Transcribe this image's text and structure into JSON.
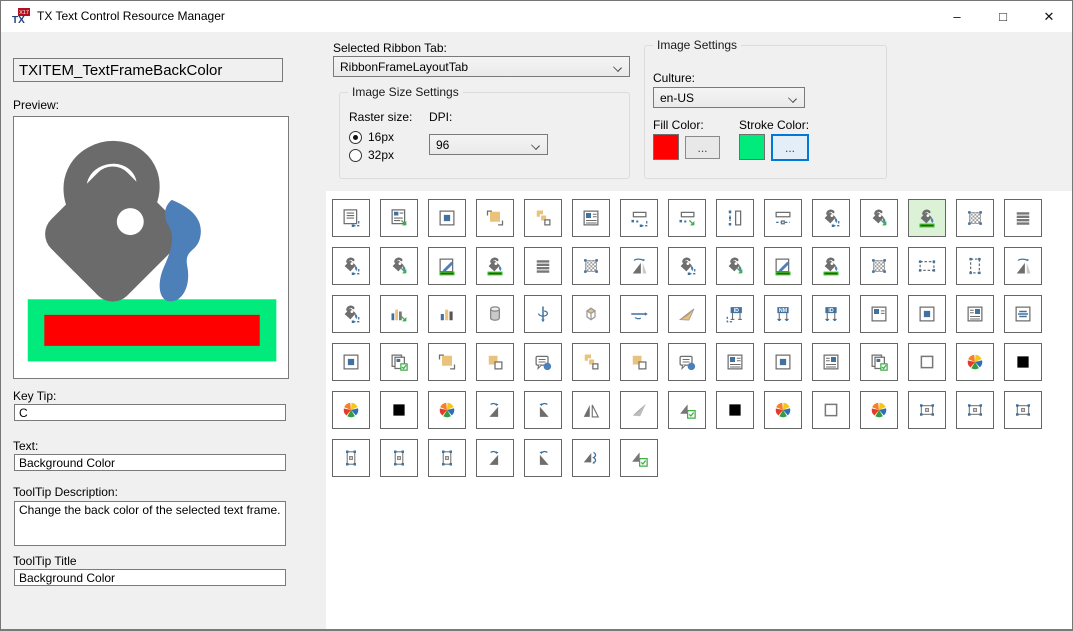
{
  "window": {
    "title": "TX Text Control Resource Manager",
    "controls": {
      "minimize": "–",
      "maximize": "□",
      "close": "✕"
    }
  },
  "left_panel": {
    "item_name": "TXITEM_TextFrameBackColor",
    "preview_label": "Preview:",
    "fields": [
      {
        "label": "Key Tip:",
        "value": "C"
      },
      {
        "label": "Text:",
        "value": "Background Color"
      },
      {
        "label": "ToolTip Description:",
        "value": "Change the back color of the selected text frame."
      },
      {
        "label": "ToolTip Title",
        "value": "Background Color"
      }
    ]
  },
  "settings": {
    "ribbon_tab_label": "Selected Ribbon Tab:",
    "ribbon_tab_value": "RibbonFrameLayoutTab",
    "image_size_group": {
      "title": "Image Size Settings",
      "raster_label": "Raster size:",
      "options": [
        {
          "label": "16px",
          "selected": true
        },
        {
          "label": "32px",
          "selected": false
        }
      ],
      "dpi_label": "DPI:",
      "dpi_value": "96"
    },
    "image_settings_group": {
      "title": "Image Settings",
      "culture_label": "Culture:",
      "culture_value": "en-US",
      "fill_label": "Fill Color:",
      "fill_color": "#FF0000",
      "stroke_label": "Stroke Color:",
      "stroke_color": "#00EB7C",
      "browse_label": "..."
    }
  },
  "icon_grid": {
    "columns": 15,
    "selected": {
      "row": 0,
      "col": 12
    },
    "rows": [
      [
        "docBlueCorner",
        "docGreenArrow",
        "framedDoc",
        "tanSqBrackets",
        "orderSquares",
        "docHeader",
        "barDotsBlue",
        "barDotsGreen",
        "vbarDots",
        "barDashDots",
        "bucketBlue",
        "bucketGreen",
        "bucketRed",
        "checkered",
        "grayBars"
      ],
      [
        "bucketBlue",
        "bucketGreen",
        "pencilRed",
        "bucketRed",
        "grayBars",
        "checkered",
        "flipTri",
        "bucketBlue",
        "bucketGreen",
        "pencilRed",
        "bucketRed",
        "checkered",
        "frameSelH",
        "frameSelV",
        "flipTri"
      ],
      [
        "bucketBlue",
        "chartGreen",
        "chart",
        "cylinder",
        "rotateY",
        "cube",
        "rotateX",
        "plane3d",
        "idFrame",
        "nmFrame",
        "idFrame2",
        "frameSqTL",
        "framedDoc",
        "docSqLines",
        "docCenterLines"
      ],
      [
        "framedDoc",
        "docCopiesCheck",
        "tanSqBrackets",
        "tanOverWhite",
        "calloutDot",
        "orderSquares",
        "tanOverWhite",
        "calloutDot",
        "docHeader",
        "framedDoc",
        "docSqLines",
        "docCopiesCheck",
        "whiteSquare",
        "colorWheel",
        "blackSquare"
      ],
      [
        "colorWheel",
        "blackSquare",
        "colorWheel",
        "rotTriL",
        "rotTriR",
        "flipH",
        "planeGray",
        "triCheck",
        "blackSquare",
        "colorWheel",
        "whiteSquare",
        "colorWheel",
        "frameHandles",
        "frameHandles",
        "frameHandles"
      ],
      [
        "vframeHandles",
        "vframeHandles",
        "vframeHandles",
        "rotTriL",
        "rotTriR",
        "flipS",
        "triCheck"
      ]
    ]
  }
}
